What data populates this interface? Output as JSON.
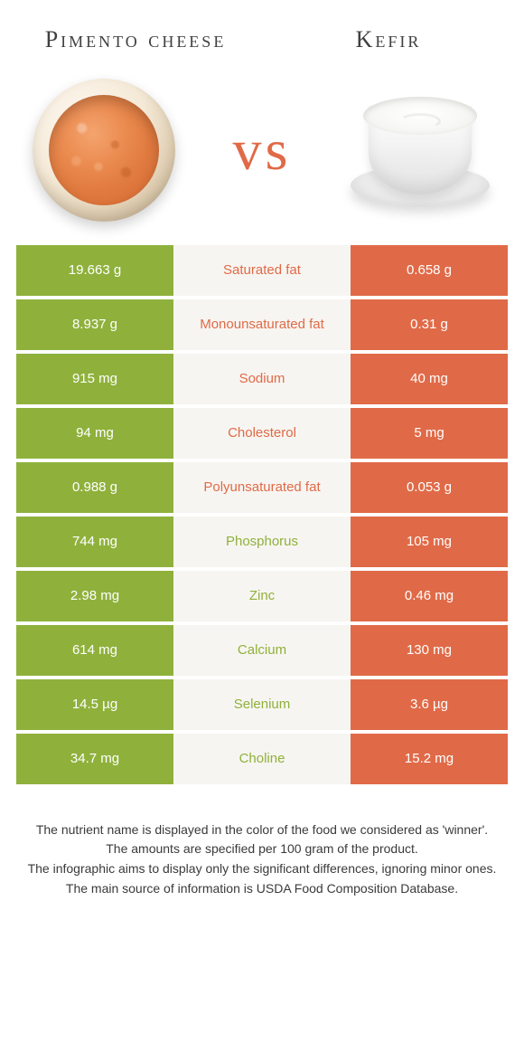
{
  "colors": {
    "green": "#8fb13c",
    "orange": "#e06a47",
    "mid_bg": "#f7f5f1",
    "page_bg": "#ffffff",
    "text": "#3a3a3a"
  },
  "header": {
    "food_a": "Pimento cheese",
    "food_b": "Kefir",
    "vs": "vs"
  },
  "table": {
    "left_color": "green",
    "right_color": "orange",
    "rows": [
      {
        "left": "19.663 g",
        "label": "Saturated fat",
        "label_color": "orange",
        "right": "0.658 g"
      },
      {
        "left": "8.937 g",
        "label": "Monounsaturated fat",
        "label_color": "orange",
        "right": "0.31 g"
      },
      {
        "left": "915 mg",
        "label": "Sodium",
        "label_color": "orange",
        "right": "40 mg"
      },
      {
        "left": "94 mg",
        "label": "Cholesterol",
        "label_color": "orange",
        "right": "5 mg"
      },
      {
        "left": "0.988 g",
        "label": "Polyunsaturated fat",
        "label_color": "orange",
        "right": "0.053 g"
      },
      {
        "left": "744 mg",
        "label": "Phosphorus",
        "label_color": "green",
        "right": "105 mg"
      },
      {
        "left": "2.98 mg",
        "label": "Zinc",
        "label_color": "green",
        "right": "0.46 mg"
      },
      {
        "left": "614 mg",
        "label": "Calcium",
        "label_color": "green",
        "right": "130 mg"
      },
      {
        "left": "14.5 µg",
        "label": "Selenium",
        "label_color": "green",
        "right": "3.6 µg"
      },
      {
        "left": "34.7 mg",
        "label": "Choline",
        "label_color": "green",
        "right": "15.2 mg"
      }
    ]
  },
  "footer": {
    "line1": "The nutrient name is displayed in the color of the food we considered as 'winner'.",
    "line2": "The amounts are specified per 100 gram of the product.",
    "line3": "The infographic aims to display only the significant differences, ignoring minor ones.",
    "line4": "The main source of information is USDA Food Composition Database."
  }
}
